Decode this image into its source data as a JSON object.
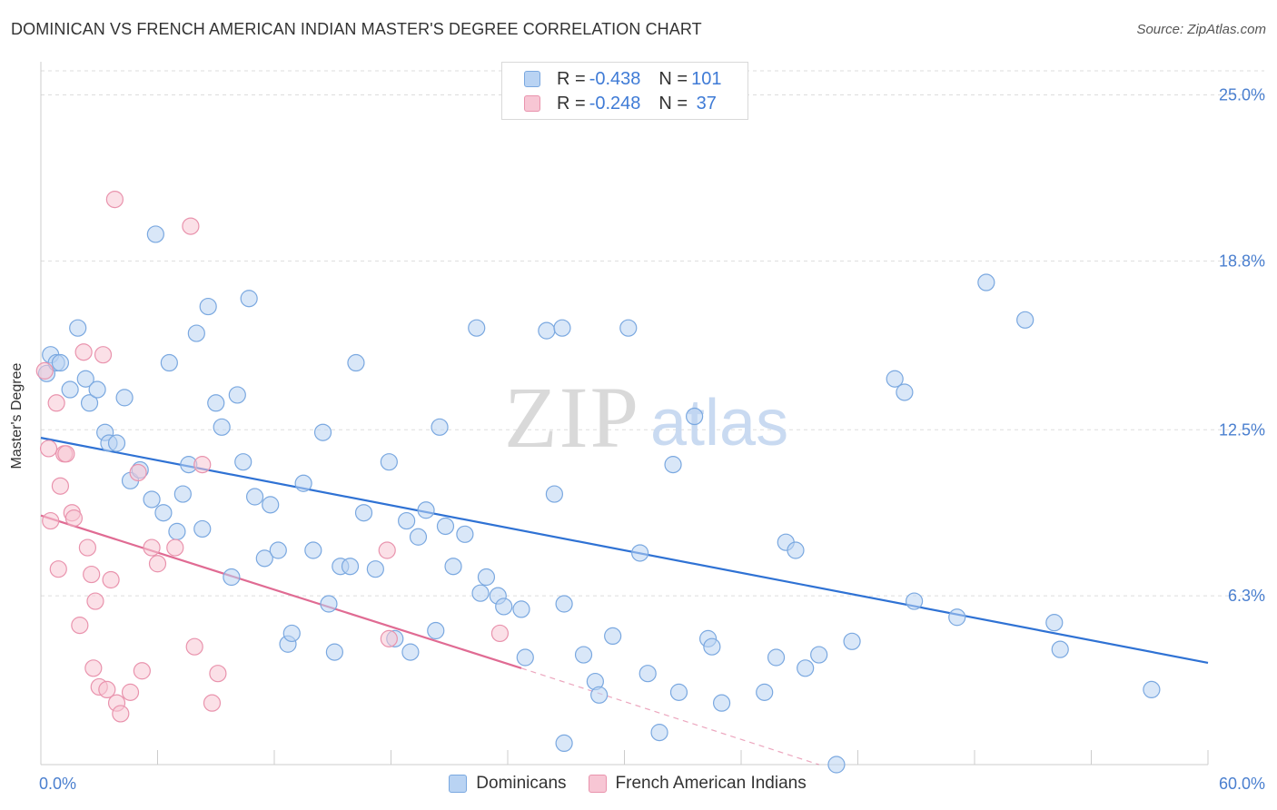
{
  "title": "DOMINICAN VS FRENCH AMERICAN INDIAN MASTER'S DEGREE CORRELATION CHART",
  "source": "Source: ZipAtlas.com",
  "watermark": {
    "zip": "ZIP",
    "atlas": "atlas"
  },
  "legend": {
    "rows": [
      {
        "r_label": "R = ",
        "r_value": "-0.438",
        "n_label": "N = ",
        "n_value": "101"
      },
      {
        "r_label": "R = ",
        "r_value": "-0.248",
        "n_label": "N = ",
        "n_value": " 37"
      }
    ]
  },
  "bottom_legend": [
    "Dominicans",
    "French American Indians"
  ],
  "colors": {
    "blue_fill": "#b9d3f3",
    "blue_stroke": "#7aa8e0",
    "blue_line": "#2f72d4",
    "pink_fill": "#f7c6d4",
    "pink_stroke": "#e993ad",
    "pink_line": "#e06b93",
    "tick_text": "#4a7fcf",
    "grid": "#dddddd"
  },
  "chart_data": {
    "type": "scatter",
    "title": "DOMINICAN VS FRENCH AMERICAN INDIAN MASTER'S DEGREE CORRELATION CHART",
    "xlabel": "",
    "ylabel": "Master's Degree",
    "xlim": [
      0,
      60
    ],
    "ylim": [
      0,
      25.9
    ],
    "x_tick_labels": [
      "0.0%",
      "60.0%"
    ],
    "y_ticks": [
      6.3,
      12.5,
      18.8,
      25.0
    ],
    "y_tick_labels": [
      "6.3%",
      "12.5%",
      "18.8%",
      "25.0%"
    ],
    "grid": true,
    "legend_position": "top-center",
    "series": [
      {
        "name": "Dominicans",
        "color": "#b9d3f3",
        "R": -0.438,
        "N": 101,
        "trend": {
          "x": [
            0,
            60
          ],
          "y": [
            12.2,
            3.8
          ],
          "style": "solid"
        },
        "points": [
          [
            0.3,
            14.6
          ],
          [
            0.5,
            15.3
          ],
          [
            0.8,
            15.0
          ],
          [
            1.0,
            15.0
          ],
          [
            1.5,
            14.0
          ],
          [
            1.9,
            16.3
          ],
          [
            2.3,
            14.4
          ],
          [
            2.5,
            13.5
          ],
          [
            2.9,
            14.0
          ],
          [
            3.3,
            12.4
          ],
          [
            3.5,
            12.0
          ],
          [
            3.9,
            12.0
          ],
          [
            4.3,
            13.7
          ],
          [
            4.6,
            10.6
          ],
          [
            5.1,
            11.0
          ],
          [
            5.7,
            9.9
          ],
          [
            5.9,
            19.8
          ],
          [
            6.3,
            9.4
          ],
          [
            6.6,
            15.0
          ],
          [
            7.0,
            8.7
          ],
          [
            7.3,
            10.1
          ],
          [
            7.6,
            11.2
          ],
          [
            8.0,
            16.1
          ],
          [
            8.3,
            8.8
          ],
          [
            8.6,
            17.1
          ],
          [
            9.0,
            13.5
          ],
          [
            9.3,
            12.6
          ],
          [
            9.8,
            7.0
          ],
          [
            10.1,
            13.8
          ],
          [
            10.4,
            11.3
          ],
          [
            10.7,
            17.4
          ],
          [
            11.0,
            10.0
          ],
          [
            11.5,
            7.7
          ],
          [
            11.8,
            9.7
          ],
          [
            12.2,
            8.0
          ],
          [
            12.7,
            4.5
          ],
          [
            12.9,
            4.9
          ],
          [
            13.5,
            10.5
          ],
          [
            14.0,
            8.0
          ],
          [
            14.5,
            12.4
          ],
          [
            14.8,
            6.0
          ],
          [
            15.1,
            4.2
          ],
          [
            15.4,
            7.4
          ],
          [
            15.9,
            7.4
          ],
          [
            16.2,
            15.0
          ],
          [
            16.6,
            9.4
          ],
          [
            17.2,
            7.3
          ],
          [
            17.9,
            11.3
          ],
          [
            18.2,
            4.7
          ],
          [
            18.8,
            9.1
          ],
          [
            19.0,
            4.2
          ],
          [
            19.4,
            8.5
          ],
          [
            19.8,
            9.5
          ],
          [
            20.3,
            5.0
          ],
          [
            20.5,
            12.6
          ],
          [
            20.8,
            8.9
          ],
          [
            21.2,
            7.4
          ],
          [
            21.8,
            8.6
          ],
          [
            22.4,
            16.3
          ],
          [
            22.6,
            6.4
          ],
          [
            22.9,
            7.0
          ],
          [
            23.5,
            6.3
          ],
          [
            23.8,
            5.9
          ],
          [
            24.7,
            5.8
          ],
          [
            24.9,
            4.0
          ],
          [
            26.0,
            16.2
          ],
          [
            26.4,
            10.1
          ],
          [
            26.8,
            16.3
          ],
          [
            26.9,
            0.8
          ],
          [
            26.9,
            6.0
          ],
          [
            27.9,
            4.1
          ],
          [
            28.5,
            3.1
          ],
          [
            28.7,
            2.6
          ],
          [
            29.4,
            4.8
          ],
          [
            30.2,
            16.3
          ],
          [
            30.8,
            7.9
          ],
          [
            31.2,
            3.4
          ],
          [
            31.8,
            1.2
          ],
          [
            32.5,
            11.2
          ],
          [
            32.8,
            2.7
          ],
          [
            33.6,
            13.0
          ],
          [
            34.3,
            4.7
          ],
          [
            34.5,
            4.4
          ],
          [
            35.0,
            2.3
          ],
          [
            37.2,
            2.7
          ],
          [
            37.8,
            4.0
          ],
          [
            38.3,
            8.3
          ],
          [
            38.8,
            8.0
          ],
          [
            39.3,
            3.6
          ],
          [
            40.0,
            4.1
          ],
          [
            41.7,
            4.6
          ],
          [
            43.9,
            14.4
          ],
          [
            44.4,
            13.9
          ],
          [
            44.9,
            6.1
          ],
          [
            47.1,
            5.5
          ],
          [
            48.6,
            18.0
          ],
          [
            50.6,
            16.6
          ],
          [
            52.1,
            5.3
          ],
          [
            52.4,
            4.3
          ],
          [
            57.1,
            2.8
          ],
          [
            40.9,
            0.0
          ]
        ]
      },
      {
        "name": "French American Indians",
        "color": "#f7c6d4",
        "R": -0.248,
        "N": 37,
        "trend": {
          "x": [
            0,
            24.7
          ],
          "y": [
            9.3,
            3.6
          ],
          "style": "solid",
          "extended_to": [
            40.0,
            0.0
          ]
        },
        "points": [
          [
            0.2,
            14.7
          ],
          [
            0.4,
            11.8
          ],
          [
            0.5,
            9.1
          ],
          [
            0.8,
            13.5
          ],
          [
            0.9,
            7.3
          ],
          [
            1.0,
            10.4
          ],
          [
            1.2,
            11.6
          ],
          [
            1.3,
            11.6
          ],
          [
            1.6,
            9.4
          ],
          [
            1.7,
            9.2
          ],
          [
            2.0,
            5.2
          ],
          [
            2.2,
            15.4
          ],
          [
            2.4,
            8.1
          ],
          [
            2.6,
            7.1
          ],
          [
            2.7,
            3.6
          ],
          [
            2.8,
            6.1
          ],
          [
            3.0,
            2.9
          ],
          [
            3.2,
            15.3
          ],
          [
            3.4,
            2.8
          ],
          [
            3.6,
            6.9
          ],
          [
            3.8,
            21.1
          ],
          [
            3.9,
            2.3
          ],
          [
            4.1,
            1.9
          ],
          [
            4.6,
            2.7
          ],
          [
            5.0,
            10.9
          ],
          [
            5.2,
            3.5
          ],
          [
            5.7,
            8.1
          ],
          [
            6.0,
            7.5
          ],
          [
            6.9,
            8.1
          ],
          [
            7.7,
            20.1
          ],
          [
            7.9,
            4.4
          ],
          [
            8.3,
            11.2
          ],
          [
            8.8,
            2.3
          ],
          [
            9.1,
            3.4
          ],
          [
            17.8,
            8.0
          ],
          [
            17.9,
            4.7
          ],
          [
            23.6,
            4.9
          ]
        ]
      }
    ]
  }
}
